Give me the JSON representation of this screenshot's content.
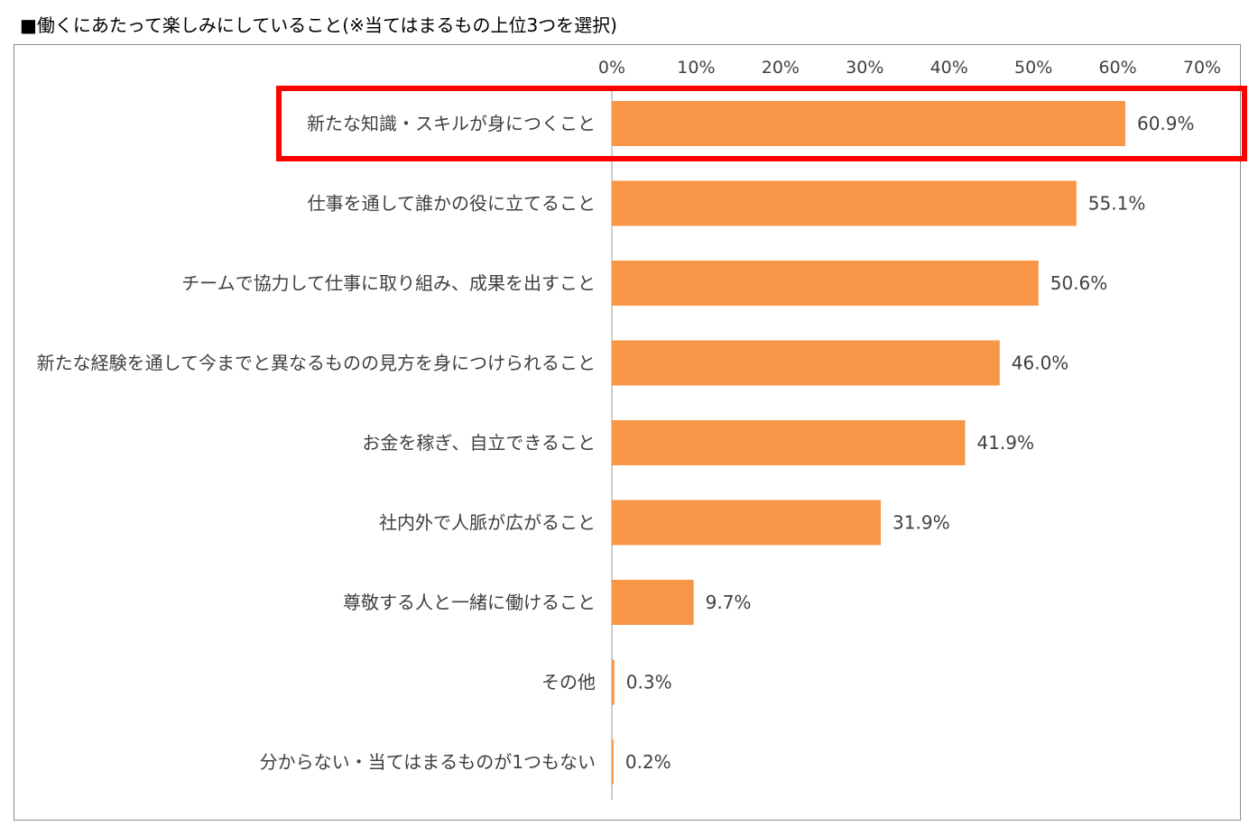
{
  "title": "■働くにあたって楽しみにしていること(※当てはまるもの上位3つを選択)",
  "colors": {
    "bar": "#f79646",
    "highlight": "#ff0000",
    "axis": "#bfbfbf",
    "text": "#404040",
    "frame": "#8c8c8c"
  },
  "chart_data": {
    "type": "bar",
    "orientation": "horizontal",
    "title": "■働くにあたって楽しみにしていること(※当てはまるもの上位3つを選択)",
    "categories": [
      "新たな知識・スキルが身につくこと",
      "仕事を通して誰かの役に立てること",
      "チームで協力して仕事に取り組み、成果を出すこと",
      "新たな経験を通して今までと異なるものの見方を身につけられること",
      "お金を稼ぎ、自立できること",
      "社内外で人脈が広がること",
      "尊敬する人と一緒に働けること",
      "その他",
      "分からない・当てはまるものが1つもない"
    ],
    "values": [
      60.9,
      55.1,
      50.6,
      46.0,
      41.9,
      31.9,
      9.7,
      0.3,
      0.2
    ],
    "value_labels": [
      "60.9%",
      "55.1%",
      "50.6%",
      "46.0%",
      "41.9%",
      "31.9%",
      "9.7%",
      "0.3%",
      "0.2%"
    ],
    "xlim": [
      0,
      70
    ],
    "x_ticks": [
      "0%",
      "10%",
      "20%",
      "30%",
      "40%",
      "50%",
      "60%",
      "70%"
    ],
    "x_axis_position": "top",
    "grid": false,
    "legend": "none",
    "highlighted_category_index": 0
  }
}
